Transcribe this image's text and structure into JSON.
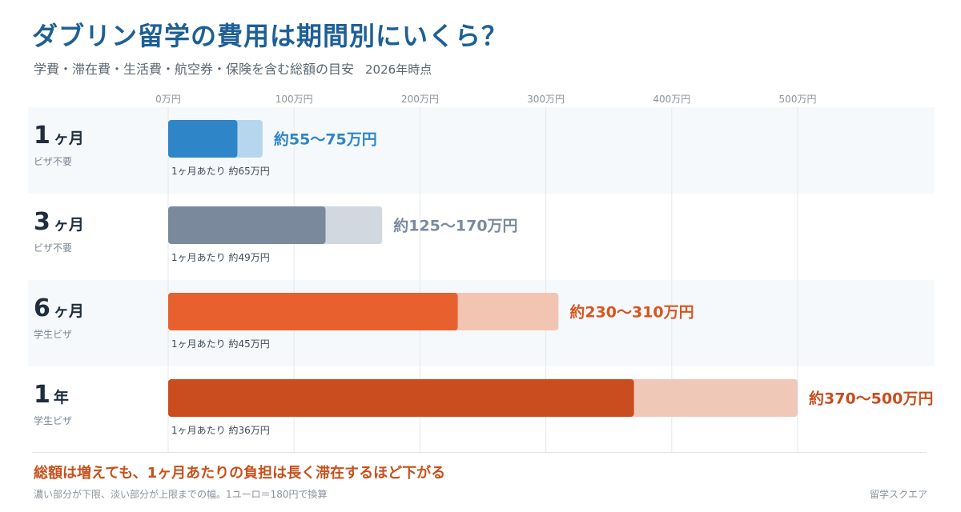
{
  "header": {
    "title": "ダブリン留学の費用は期間別にいくら？",
    "subtitle": "学費・滞在費・生活費・航空券・保険を含む総額の目安",
    "as_of": "2026年時点"
  },
  "rows": [
    {
      "big": "1",
      "unit": "ヶ月",
      "visa": "ビザ不要"
    },
    {
      "big": "3",
      "unit": "ヶ月",
      "visa": "ビザ不要"
    },
    {
      "big": "6",
      "unit": "ヶ月",
      "visa": "学生ビザ"
    },
    {
      "big": "1",
      "unit": "年",
      "visa": "学生ビザ"
    }
  ],
  "footer": {
    "takeaway": "総額は増えても、1ヶ月あたりの負担は長く滞在するほど下がる",
    "note": "濃い部分が下限、淡い部分が上限までの幅。1ユーロ＝180円で換算",
    "brand": "留学スクエア"
  },
  "chart_data": {
    "type": "bar",
    "orientation": "horizontal",
    "stacked_range": true,
    "categories": [
      "1ヶ月",
      "3ヶ月",
      "6ヶ月",
      "1年"
    ],
    "series": [
      {
        "values": [
          55,
          125,
          230,
          370
        ]
      },
      {
        "values": [
          75,
          170,
          310,
          500
        ]
      }
    ],
    "range_labels": [
      "約55〜75万円",
      "約125〜170万円",
      "約230〜310万円",
      "約370〜500万円"
    ],
    "per_month_labels": [
      "1ヶ月あたり 約65万円",
      "1ヶ月あたり 約49万円",
      "1ヶ月あたり 約45万円",
      "1ヶ月あたり 約36万円"
    ],
    "xlim": [
      0,
      500
    ],
    "ticks": [
      0,
      100,
      200,
      300,
      400,
      500
    ],
    "tick_labels": [
      "0万円",
      "100万円",
      "200万円",
      "300万円",
      "400万円",
      "500万円"
    ],
    "grid": true,
    "colors": {
      "dark": [
        "#2e86c8",
        "#7a8a9c",
        "#e8602e",
        "#c94d1e"
      ],
      "light": [
        "#b6d6ee",
        "#d2d8df",
        "#f2c5b3",
        "#f0c8b8"
      ],
      "label": [
        "#2e86c8",
        "#7a8a9c",
        "#d9541f",
        "#c94d1e"
      ]
    }
  }
}
